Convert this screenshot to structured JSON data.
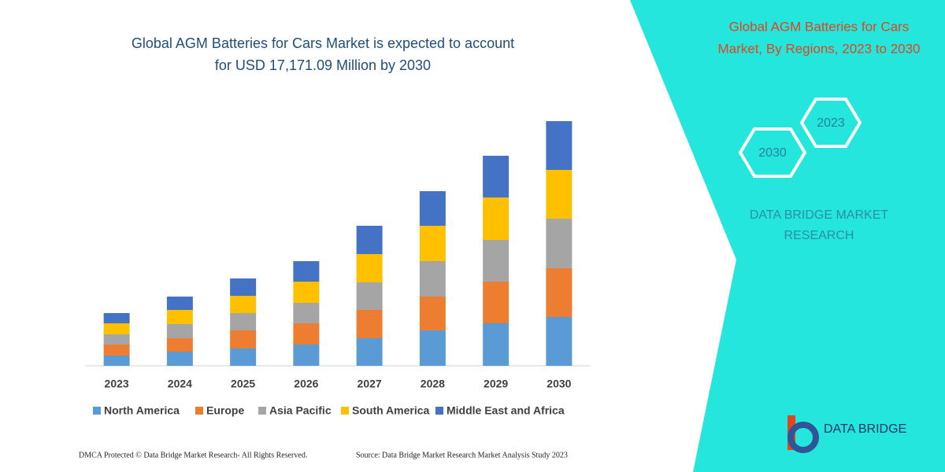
{
  "chart_data": {
    "type": "stacked_bar",
    "title": [
      "Global AGM Batteries for Cars Market is expected to account",
      "for USD 17,171.09 Million by 2030"
    ],
    "categories": [
      "2023",
      "2024",
      "2025",
      "2026",
      "2027",
      "2028",
      "2029",
      "2030"
    ],
    "series": [
      {
        "name": "North America",
        "color": "#5b9bd5",
        "values": [
          13,
          18,
          22,
          27,
          35,
          45,
          54,
          62
        ]
      },
      {
        "name": "Europe",
        "color": "#ed7d31",
        "values": [
          14,
          17,
          23,
          27,
          36,
          43,
          53,
          62
        ]
      },
      {
        "name": "Asia Pacific",
        "color": "#a5a5a5",
        "values": [
          13,
          18,
          22,
          26,
          35,
          45,
          53,
          63
        ]
      },
      {
        "name": "South America",
        "color": "#ffc000",
        "values": [
          14,
          18,
          22,
          27,
          36,
          45,
          54,
          62
        ]
      },
      {
        "name": "Middle East and Africa",
        "color": "#4472c4",
        "values": [
          13,
          17,
          22,
          26,
          36,
          44,
          53,
          62
        ]
      }
    ],
    "ylim": [
      0,
      320
    ],
    "legend": "bottom"
  },
  "panel": {
    "title": [
      "Global AGM Batteries for Cars",
      "Market, By Regions, 2023 to 2030"
    ],
    "hexagons": [
      "2023",
      "2030"
    ],
    "brand": [
      "DATA BRIDGE MARKET",
      "RESEARCH"
    ],
    "logo": "DATA BRIDGE"
  },
  "footer": {
    "left": "DMCA Protected © Data Bridge Market Research-  All Rights Reserved.",
    "right": "Source: Data Bridge Market Research  Market Analysis Study 2023"
  }
}
